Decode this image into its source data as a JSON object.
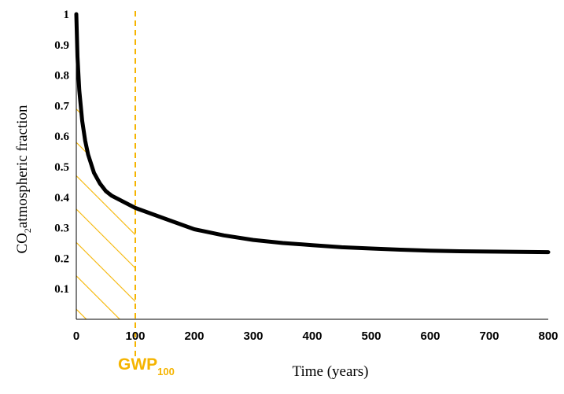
{
  "chart_data": {
    "type": "line",
    "title": "",
    "xlabel": "Time (years)",
    "ylabel_main": "CO",
    "ylabel_sub": "2",
    "ylabel_rest": "atmospheric fraction",
    "xlim": [
      0,
      800
    ],
    "ylim": [
      0,
      1
    ],
    "x_ticks": [
      0,
      100,
      200,
      300,
      400,
      500,
      600,
      700,
      800
    ],
    "x_tick_labels": [
      "0",
      "100",
      "200",
      "300",
      "400",
      "500",
      "600",
      "700",
      "800"
    ],
    "y_ticks": [
      0.1,
      0.2,
      0.3,
      0.4,
      0.5,
      0.6,
      0.7,
      0.8,
      0.9,
      1
    ],
    "y_tick_labels": [
      "0.1",
      "0.2",
      "0.3",
      "0.4",
      "0.5",
      "0.6",
      "0.7",
      "0.8",
      "0.9",
      "1"
    ],
    "grid": false,
    "series": [
      {
        "x": [
          0,
          2,
          5,
          10,
          15,
          20,
          30,
          40,
          50,
          60,
          80,
          100,
          150,
          200,
          250,
          300,
          350,
          400,
          450,
          500,
          550,
          600,
          650,
          700,
          750,
          800
        ],
        "y": [
          1.0,
          0.86,
          0.75,
          0.65,
          0.585,
          0.54,
          0.48,
          0.445,
          0.42,
          0.405,
          0.385,
          0.365,
          0.33,
          0.295,
          0.275,
          0.26,
          0.25,
          0.243,
          0.236,
          0.232,
          0.228,
          0.225,
          0.223,
          0.222,
          0.221,
          0.22
        ],
        "color": "#000000"
      }
    ],
    "annotation": {
      "x": 100,
      "label_main": "GWP",
      "label_sub": "100",
      "color": "#f5b400",
      "hatched_area_under_curve_from": 0,
      "hatched_area_under_curve_to": 100
    }
  }
}
